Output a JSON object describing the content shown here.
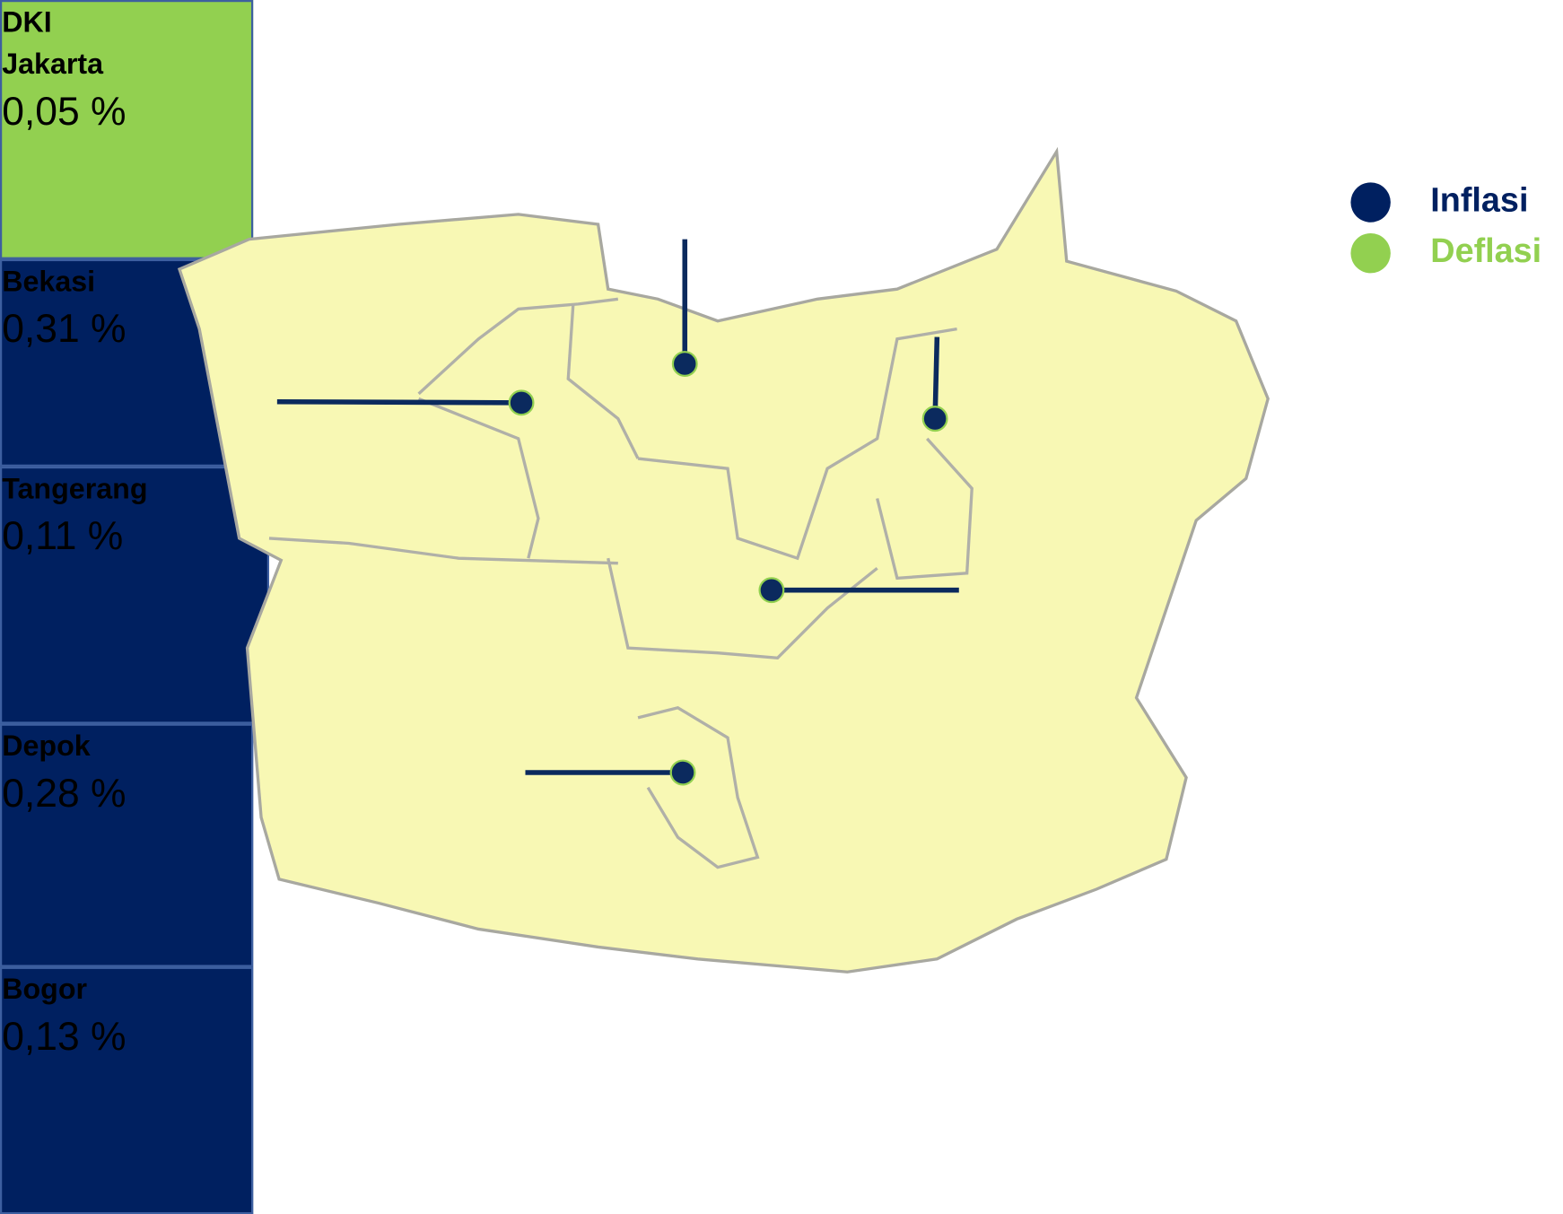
{
  "regions": [
    {
      "name": "DKI Jakarta",
      "value": "0,05 %",
      "color": "#92d050"
    },
    {
      "name": "Bekasi",
      "value": "0,31 %",
      "color": "#002060"
    },
    {
      "name": "Tangerang",
      "value": "0,11 %",
      "color": "#002060"
    },
    {
      "name": "Depok",
      "value": "0,28 %",
      "color": "#002060"
    },
    {
      "name": "Bogor",
      "value": "0,13 %",
      "color": "#002060"
    }
  ],
  "legend": [
    {
      "label": "Inflasi",
      "color": "#002060"
    },
    {
      "label": "Deflasi",
      "color": "#92d050"
    }
  ]
}
